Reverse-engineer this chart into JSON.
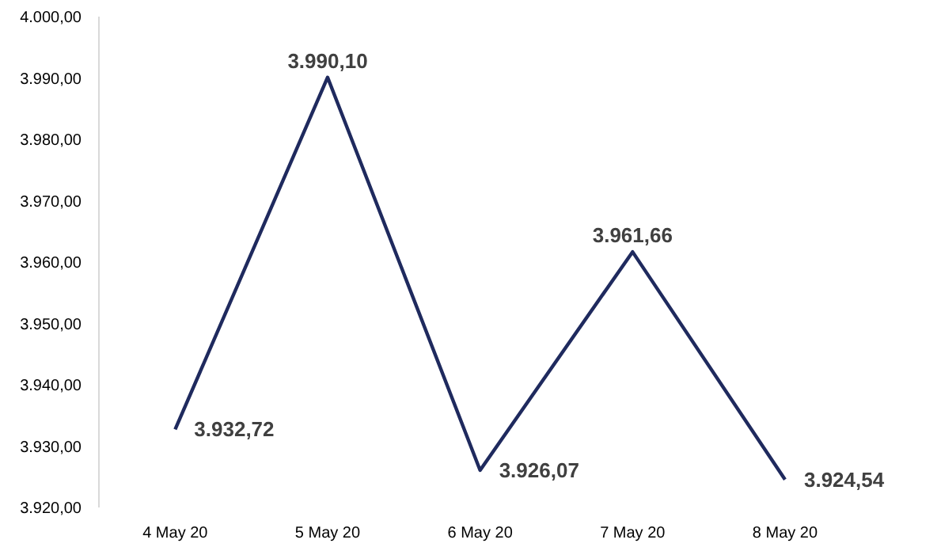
{
  "chart_data": {
    "type": "line",
    "categories": [
      "4 May 20",
      "5 May 20",
      "6 May 20",
      "7 May 20",
      "8 May 20"
    ],
    "series": [
      {
        "color": "#1f2a5e",
        "values": [
          3932.72,
          3990.1,
          3926.07,
          3961.66,
          3924.54
        ],
        "value_labels": [
          "3.932,72",
          "3.990,10",
          "3.926,07",
          "3.961,66",
          "3.924,54"
        ]
      }
    ],
    "ylim": [
      3920,
      4000
    ],
    "yticks": [
      {
        "value": 3920,
        "label": "3.920,00"
      },
      {
        "value": 3930,
        "label": "3.930,00"
      },
      {
        "value": 3940,
        "label": "3.940,00"
      },
      {
        "value": 3950,
        "label": "3.950,00"
      },
      {
        "value": 3960,
        "label": "3.960,00"
      },
      {
        "value": 3970,
        "label": "3.970,00"
      },
      {
        "value": 3980,
        "label": "3.980,00"
      },
      {
        "value": 3990,
        "label": "3.990,00"
      },
      {
        "value": 4000,
        "label": "4.000,00"
      }
    ],
    "grid": false,
    "marker": "none",
    "line_style": "solid"
  }
}
